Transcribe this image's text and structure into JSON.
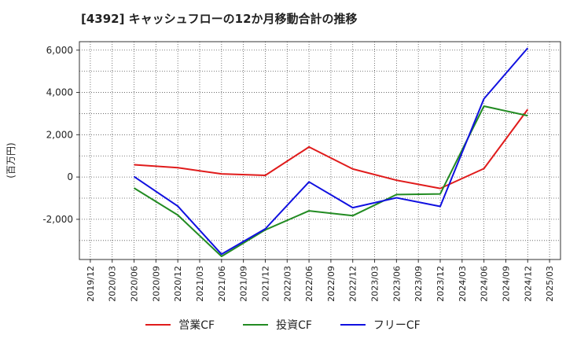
{
  "chart_data": {
    "type": "line",
    "title": "[4392]  キャッシュフローの12か月移動合計の推移",
    "ylabel": "(百万円)",
    "xlabel": "",
    "x_ticks": [
      "2019/12",
      "2020/03",
      "2020/06",
      "2020/09",
      "2020/12",
      "2021/03",
      "2021/06",
      "2021/09",
      "2021/12",
      "2022/03",
      "2022/06",
      "2022/09",
      "2022/12",
      "2023/03",
      "2023/06",
      "2023/09",
      "2023/12",
      "2024/03",
      "2024/06",
      "2024/09",
      "2024/12",
      "2025/03"
    ],
    "y_ticks": [
      -2000,
      0,
      2000,
      4000,
      6000
    ],
    "y_tick_labels": [
      "-2,000",
      "0",
      "2,000",
      "4,000",
      "6,000"
    ],
    "ylim": [
      -3900,
      6400
    ],
    "grid": true,
    "legend_position": "bottom",
    "series": [
      {
        "name": "営業CF",
        "color": "#e01b1b",
        "points": [
          [
            "2020/06",
            580
          ],
          [
            "2020/12",
            440
          ],
          [
            "2021/06",
            150
          ],
          [
            "2021/12",
            80
          ],
          [
            "2022/06",
            1420
          ],
          [
            "2022/12",
            380
          ],
          [
            "2023/06",
            -150
          ],
          [
            "2023/12",
            -540
          ],
          [
            "2024/06",
            400
          ],
          [
            "2024/12",
            3200
          ]
        ]
      },
      {
        "name": "投資CF",
        "color": "#228b22",
        "points": [
          [
            "2020/06",
            -520
          ],
          [
            "2020/12",
            -1800
          ],
          [
            "2021/06",
            -3750
          ],
          [
            "2021/12",
            -2500
          ],
          [
            "2022/06",
            -1600
          ],
          [
            "2022/12",
            -1830
          ],
          [
            "2023/06",
            -830
          ],
          [
            "2023/12",
            -800
          ],
          [
            "2024/06",
            3350
          ],
          [
            "2024/12",
            2900
          ]
        ]
      },
      {
        "name": "フリーCF",
        "color": "#1010e0",
        "points": [
          [
            "2020/06",
            20
          ],
          [
            "2020/12",
            -1380
          ],
          [
            "2021/06",
            -3650
          ],
          [
            "2021/12",
            -2450
          ],
          [
            "2022/06",
            -230
          ],
          [
            "2022/12",
            -1450
          ],
          [
            "2023/06",
            -980
          ],
          [
            "2023/12",
            -1390
          ],
          [
            "2024/06",
            3700
          ],
          [
            "2024/12",
            6100
          ]
        ]
      }
    ]
  }
}
